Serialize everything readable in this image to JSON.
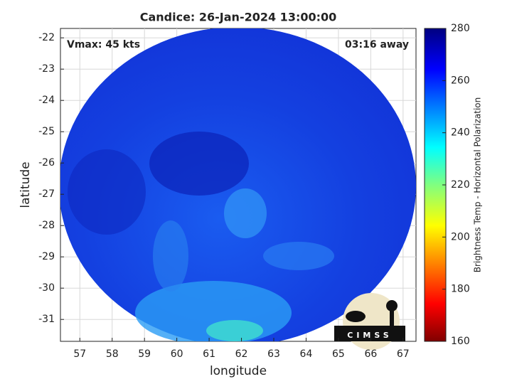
{
  "chart_data": {
    "type": "map",
    "title": "Candice: 26-Jan-2024 13:00:00",
    "annotations": [
      "Vmax: 45 kts",
      "03:16 away"
    ],
    "xlabel": "longitude",
    "ylabel": "latitude",
    "xlim": [
      56.4,
      67.4
    ],
    "xticks": [
      57,
      58,
      59,
      60,
      61,
      62,
      63,
      64,
      65,
      66,
      67
    ],
    "ylim": [
      -31.7,
      -21.7
    ],
    "yticks": [
      -22,
      -23,
      -24,
      -25,
      -26,
      -27,
      -28,
      -29,
      -30,
      -31
    ],
    "grid": true,
    "colorbar": {
      "label": "Brightness Temp - Horizontal Polarization",
      "clim": [
        160,
        280
      ],
      "ticks": [
        160,
        180,
        200,
        220,
        240,
        260,
        280
      ]
    },
    "logo_text": "CIMSS"
  }
}
